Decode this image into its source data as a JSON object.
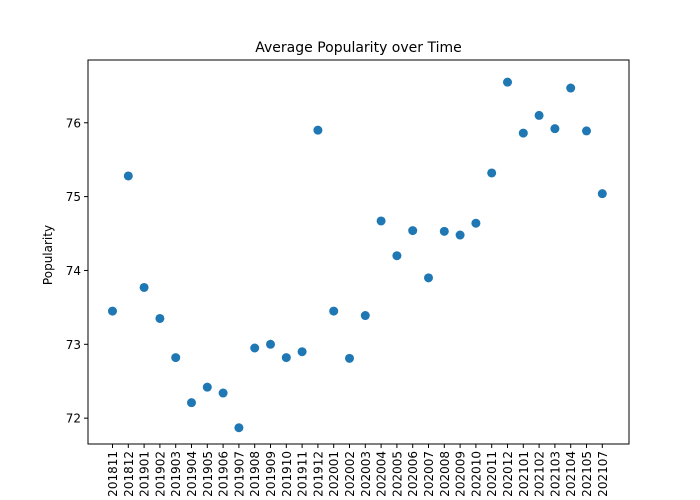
{
  "chart_data": {
    "type": "scatter",
    "title": "Average Popularity over Time",
    "xlabel": "",
    "ylabel": "Popularity",
    "ylim": [
      71.65,
      76.85
    ],
    "yticks": [
      72,
      73,
      74,
      75,
      76
    ],
    "grid": false,
    "marker_color": "#1f77b4",
    "categories": [
      "201811",
      "201812",
      "201901",
      "201902",
      "201903",
      "201904",
      "201905",
      "201906",
      "201907",
      "201908",
      "201909",
      "201910",
      "201911",
      "201912",
      "202001",
      "202002",
      "202003",
      "202004",
      "202005",
      "202006",
      "202007",
      "202008",
      "202009",
      "202010",
      "202011",
      "202012",
      "202101",
      "202102",
      "202103",
      "202104",
      "202105",
      "202107"
    ],
    "values": [
      73.45,
      75.28,
      73.77,
      73.35,
      72.82,
      72.21,
      72.42,
      72.34,
      71.87,
      72.95,
      73.0,
      72.82,
      72.9,
      75.9,
      73.45,
      72.81,
      73.39,
      74.67,
      74.2,
      74.54,
      73.9,
      74.53,
      74.48,
      74.64,
      75.32,
      76.55,
      75.86,
      76.1,
      75.92,
      76.47,
      75.89,
      75.04
    ]
  }
}
